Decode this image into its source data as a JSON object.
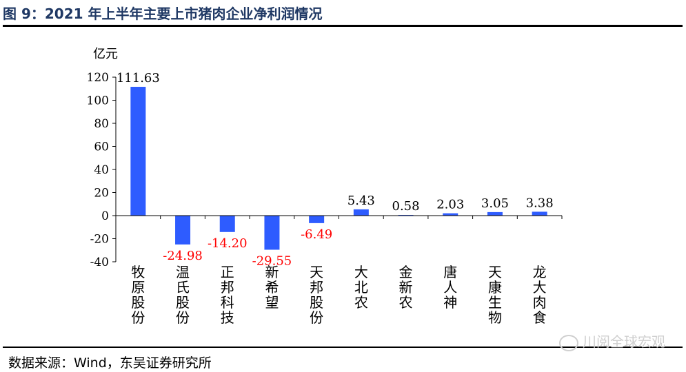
{
  "title": "图 9：2021 年上半年主要上市猪肉企业净利润情况",
  "source": "数据来源：Wind，东吴证券研究所",
  "watermark": "川阅全球宏观",
  "colors": {
    "bar": "#2e5cff",
    "negative_label": "#ff0000",
    "title": "#1f3864"
  },
  "chart_data": {
    "type": "bar",
    "title": "",
    "xlabel": "",
    "ylabel": "亿元",
    "categories": [
      "牧原股份",
      "温氏股份",
      "正邦科技",
      "新希望",
      "天邦股份",
      "大北农",
      "金新农",
      "唐人神",
      "天康生物",
      "龙大肉食"
    ],
    "values": [
      111.63,
      -24.98,
      -14.2,
      -29.55,
      -6.49,
      5.43,
      0.58,
      2.03,
      3.05,
      3.38
    ],
    "value_labels": [
      "111.63",
      "-24.98",
      "-14.20",
      "-29.55",
      "-6.49",
      "5.43",
      "0.58",
      "2.03",
      "3.05",
      "3.38"
    ],
    "ylim": [
      -40,
      120
    ],
    "yticks": [
      "-40",
      "-20",
      "0",
      "20",
      "40",
      "60",
      "80",
      "100",
      "120"
    ],
    "grid": false,
    "legend": "none"
  }
}
